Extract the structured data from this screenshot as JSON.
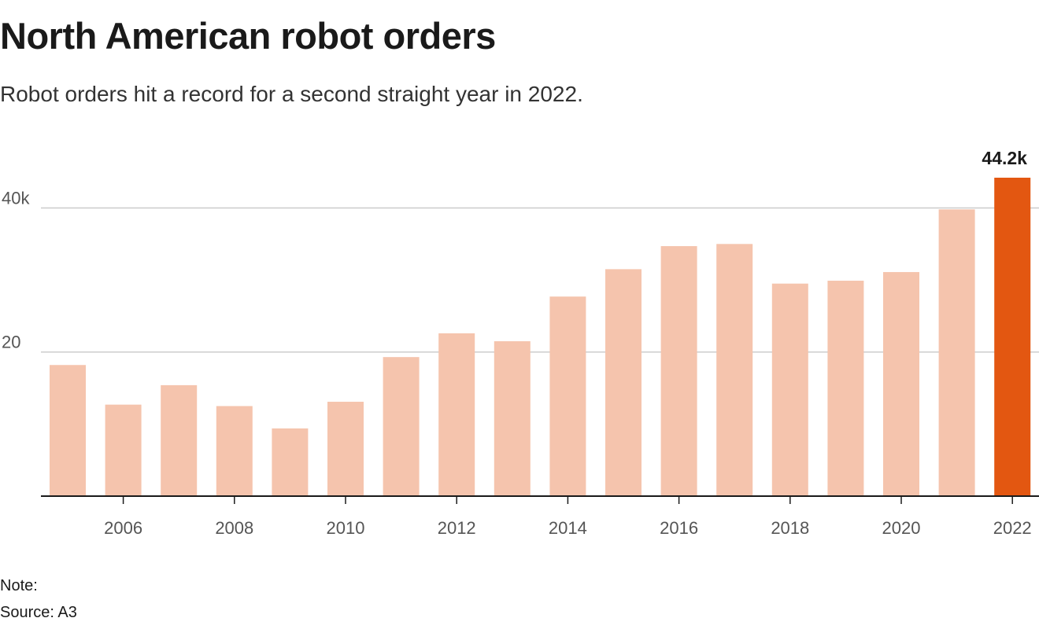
{
  "chart_data": {
    "type": "bar",
    "title": "North American robot orders",
    "subtitle": "Robot orders hit a record for a second straight year in 2022.",
    "x": [
      2005,
      2006,
      2007,
      2008,
      2009,
      2010,
      2011,
      2012,
      2013,
      2014,
      2015,
      2016,
      2017,
      2018,
      2019,
      2020,
      2021,
      2022
    ],
    "values": [
      18.2,
      12.7,
      15.4,
      12.5,
      9.4,
      13.1,
      19.3,
      22.6,
      21.5,
      27.7,
      31.5,
      34.7,
      35.0,
      29.5,
      29.9,
      31.1,
      39.8,
      44.2
    ],
    "x_ticks": [
      2006,
      2008,
      2010,
      2012,
      2014,
      2016,
      2018,
      2020,
      2022
    ],
    "x_tick_labels": [
      "2006",
      "2008",
      "2010",
      "2012",
      "2014",
      "2016",
      "2018",
      "2020",
      "2022"
    ],
    "y_ticks": [
      20,
      40
    ],
    "y_tick_labels": [
      "20",
      "40k"
    ],
    "ylim": [
      0,
      44.2
    ],
    "xlabel": "",
    "ylabel": "",
    "highlight": {
      "x": 2022,
      "label": "44.2k"
    },
    "grid": true,
    "colors": {
      "bar": "#f5c4ad",
      "highlight": "#e35711",
      "grid": "#cccccc",
      "axis": "#1a1a1a"
    }
  },
  "footer": {
    "note": "Note:",
    "source": "Source: A3"
  }
}
